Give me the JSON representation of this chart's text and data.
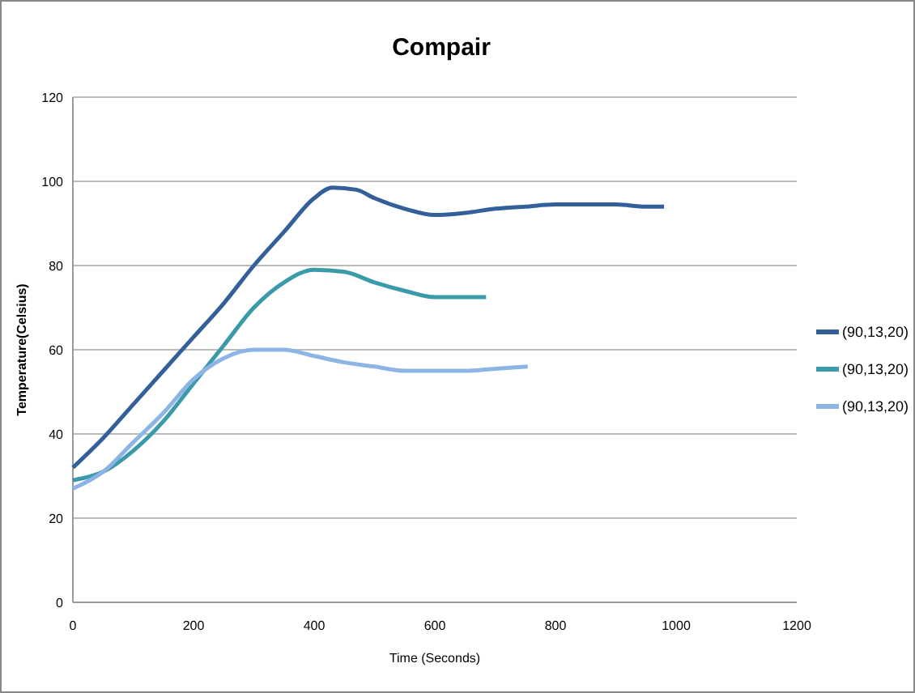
{
  "chart_data": {
    "type": "line",
    "title": "Compair",
    "xlabel": "Time (Seconds)",
    "ylabel": "Temperature(Celsius)",
    "xlim": [
      0,
      1200
    ],
    "xticks": [
      0,
      200,
      400,
      600,
      800,
      1000,
      1200
    ],
    "ylim": [
      0,
      120
    ],
    "yticks": [
      0,
      20,
      40,
      60,
      80,
      100,
      120
    ],
    "grid": "y",
    "legend": "right",
    "line_style": "solid",
    "series": [
      {
        "name": "(90,13,20)",
        "color": "#34609a",
        "x": [
          0,
          50,
          100,
          150,
          200,
          250,
          300,
          350,
          400,
          430,
          470,
          500,
          550,
          600,
          650,
          700,
          750,
          800,
          850,
          900,
          950,
          980
        ],
        "values": [
          32,
          39,
          47,
          55,
          63,
          71,
          80,
          88,
          96,
          98.5,
          98,
          96,
          93.5,
          92,
          92.5,
          93.5,
          94,
          94.5,
          94.5,
          94.5,
          94,
          94
        ]
      },
      {
        "name": "(90,13,20)",
        "color": "#3b9aaa",
        "x": [
          0,
          50,
          100,
          150,
          200,
          250,
          300,
          350,
          400,
          450,
          500,
          550,
          600,
          650,
          685
        ],
        "values": [
          29,
          31,
          36,
          43,
          52,
          61,
          70,
          76,
          79,
          78.5,
          76,
          74,
          72.5,
          72.5,
          72.5
        ]
      },
      {
        "name": "(90,13,20)",
        "color": "#8cb4e4",
        "x": [
          0,
          50,
          100,
          150,
          200,
          250,
          300,
          350,
          400,
          450,
          500,
          550,
          600,
          650,
          700,
          754
        ],
        "values": [
          27,
          31,
          38,
          45,
          53,
          58,
          60,
          60,
          58.5,
          57,
          56,
          55,
          55,
          55,
          55.5,
          56
        ]
      }
    ]
  }
}
